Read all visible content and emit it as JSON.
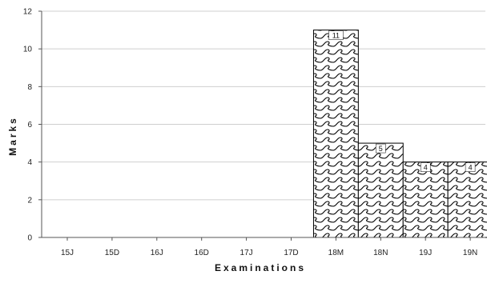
{
  "chart_data": {
    "type": "bar",
    "title": "",
    "xlabel": "Examinations",
    "ylabel": "Marks",
    "ylim": [
      0,
      12
    ],
    "yticks": [
      0,
      2,
      4,
      6,
      8,
      10,
      12
    ],
    "grid": true,
    "categories": [
      "15J",
      "15D",
      "16J",
      "16D",
      "17J",
      "17D",
      "18M",
      "18N",
      "19J",
      "19N"
    ],
    "values": [
      0,
      0,
      0,
      0,
      0,
      0,
      11,
      5,
      4,
      4
    ],
    "data_labels": [
      "",
      "",
      "",
      "",
      "",
      "",
      "11",
      "5",
      "4",
      "4"
    ],
    "bar_fill": "wave-pattern",
    "colors": {
      "bar_stroke": "#000000",
      "grid": "#cfcfcf",
      "axis": "#555555"
    }
  }
}
